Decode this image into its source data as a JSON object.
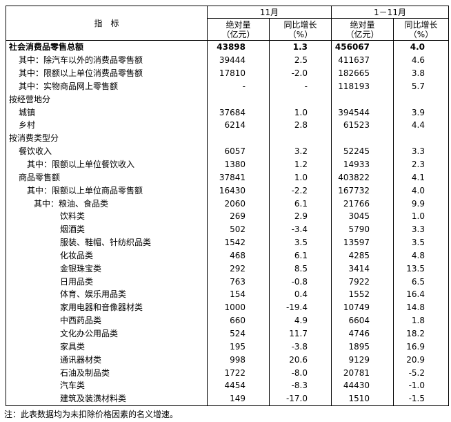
{
  "table": {
    "header": {
      "indicator": "指　标",
      "groups": [
        "11月",
        "1－11月"
      ],
      "columns": [
        [
          "绝对量",
          "（亿元）"
        ],
        [
          "同比增长",
          "（%）"
        ],
        [
          "绝对量",
          "（亿元）"
        ],
        [
          "同比增长",
          "（%）"
        ]
      ]
    },
    "rows": [
      [
        "社会消费品零售总额",
        "43898",
        "1.3",
        "456067",
        "4.0"
      ],
      [
        "其中：除汽车以外的消费品零售额",
        "39444",
        "2.5",
        "411637",
        "4.6"
      ],
      [
        "其中：限额以上单位消费品零售额",
        "17810",
        "-2.0",
        "182665",
        "3.8"
      ],
      [
        "其中：实物商品网上零售额",
        "-",
        "-",
        "118193",
        "5.7"
      ],
      [
        "按经营地分"
      ],
      [
        "城镇",
        "37684",
        "1.0",
        "394544",
        "3.9"
      ],
      [
        "乡村",
        "6214",
        "2.8",
        "61523",
        "4.4"
      ],
      [
        "按消费类型分"
      ],
      [
        "餐饮收入",
        "6057",
        "3.2",
        "52245",
        "3.3"
      ],
      [
        "其中：限额以上单位餐饮收入",
        "1380",
        "1.2",
        "14933",
        "2.3"
      ],
      [
        "商品零售额",
        "37841",
        "1.0",
        "403822",
        "4.1"
      ],
      [
        "其中：限额以上单位商品零售额",
        "16430",
        "-2.2",
        "167732",
        "4.0"
      ],
      [
        "其中：粮油、食品类",
        "2060",
        "6.1",
        "21766",
        "9.9"
      ],
      [
        "饮料类",
        "269",
        "2.9",
        "3045",
        "1.0"
      ],
      [
        "烟酒类",
        "502",
        "-3.4",
        "5790",
        "3.3"
      ],
      [
        "服装、鞋帽、针纺织品类",
        "1542",
        "3.5",
        "13597",
        "3.5"
      ],
      [
        "化妆品类",
        "468",
        "6.1",
        "4285",
        "4.8"
      ],
      [
        "金银珠宝类",
        "292",
        "8.5",
        "3414",
        "13.5"
      ],
      [
        "日用品类",
        "763",
        "-0.8",
        "7922",
        "6.5"
      ],
      [
        "体育、娱乐用品类",
        "154",
        "0.4",
        "1552",
        "16.4"
      ],
      [
        "家用电器和音像器材类",
        "1000",
        "-19.4",
        "10749",
        "14.8"
      ],
      [
        "中西药品类",
        "660",
        "4.9",
        "6604",
        "1.8"
      ],
      [
        "文化办公用品类",
        "524",
        "11.7",
        "4746",
        "18.2"
      ],
      [
        "家具类",
        "195",
        "-3.8",
        "1895",
        "16.9"
      ],
      [
        "通讯器材类",
        "998",
        "20.6",
        "9129",
        "20.9"
      ],
      [
        "石油及制品类",
        "1722",
        "-8.0",
        "20781",
        "-5.2"
      ],
      [
        "汽车类",
        "4454",
        "-8.3",
        "44430",
        "-1.0"
      ],
      [
        "建筑及装潢材料类",
        "149",
        "-17.0",
        "1510",
        "-1.5"
      ]
    ]
  },
  "note": "注：此表数据均为未扣除价格因素的名义增速。"
}
